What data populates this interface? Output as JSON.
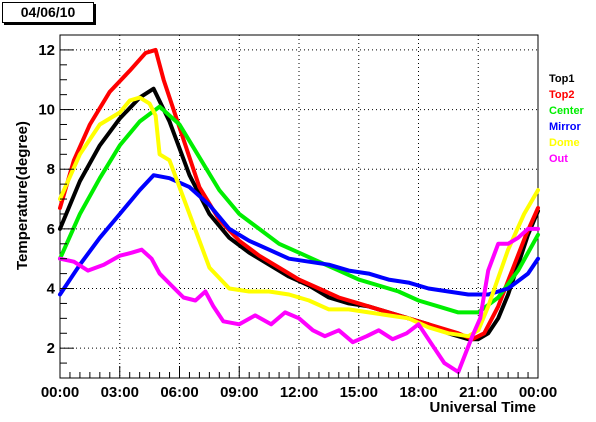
{
  "window": {
    "title": "04/06/10"
  },
  "chart_data": {
    "type": "line",
    "title": "04/06/10",
    "xlabel": "Universal Time",
    "ylabel": "Temperature(degree)",
    "x_ticks": [
      "00:00",
      "03:00",
      "06:00",
      "09:00",
      "12:00",
      "15:00",
      "18:00",
      "21:00",
      "00:00"
    ],
    "y_ticks": [
      2,
      4,
      6,
      8,
      10,
      12
    ],
    "xlim": [
      0,
      24
    ],
    "ylim": [
      1.0,
      12.5
    ],
    "grid": true,
    "legend_position": "right",
    "x_unit": "hours since 00:00 UT",
    "series": [
      {
        "name": "Top1",
        "color": "#000000",
        "x": [
          0,
          1,
          2,
          3,
          4,
          4.7,
          5.5,
          6.5,
          7.5,
          8.5,
          9.5,
          10.5,
          11.5,
          12.5,
          13.5,
          14.5,
          15.5,
          16.5,
          17.5,
          18.5,
          19.5,
          20.5,
          21,
          21.5,
          22,
          22.5,
          23,
          23.5,
          24
        ],
        "y": [
          6.0,
          7.6,
          8.8,
          9.7,
          10.4,
          10.7,
          9.6,
          7.8,
          6.5,
          5.7,
          5.2,
          4.8,
          4.4,
          4.1,
          3.7,
          3.5,
          3.4,
          3.2,
          3.0,
          2.8,
          2.5,
          2.3,
          2.3,
          2.5,
          3.0,
          3.8,
          4.8,
          5.8,
          6.6
        ]
      },
      {
        "name": "Top2",
        "color": "#ff0000",
        "x": [
          0,
          0.7,
          1.5,
          2.5,
          3.5,
          4.3,
          4.8,
          5.2,
          6.0,
          7.0,
          8.0,
          9.0,
          10.0,
          11.0,
          12.0,
          13.0,
          14.0,
          15.0,
          16.0,
          17.0,
          18.0,
          19.0,
          20.0,
          20.7,
          21.3,
          22.0,
          22.7,
          23.4,
          24
        ],
        "y": [
          6.7,
          8.3,
          9.5,
          10.6,
          11.3,
          11.9,
          12.0,
          11.0,
          9.4,
          7.4,
          6.3,
          5.6,
          5.1,
          4.7,
          4.3,
          4.0,
          3.7,
          3.5,
          3.3,
          3.1,
          2.9,
          2.7,
          2.5,
          2.3,
          2.5,
          3.4,
          4.6,
          5.8,
          6.7
        ]
      },
      {
        "name": "Center",
        "color": "#00ee00",
        "x": [
          0,
          1,
          2,
          3,
          4,
          5,
          6,
          7,
          8,
          9,
          10,
          11,
          12,
          13,
          14,
          15,
          16,
          17,
          18,
          19,
          20,
          21,
          22,
          23,
          24
        ],
        "y": [
          5.0,
          6.5,
          7.7,
          8.8,
          9.6,
          10.1,
          9.5,
          8.4,
          7.3,
          6.5,
          6.0,
          5.5,
          5.2,
          4.9,
          4.6,
          4.3,
          4.1,
          3.9,
          3.6,
          3.4,
          3.2,
          3.2,
          3.7,
          4.6,
          5.8
        ]
      },
      {
        "name": "Mirror",
        "color": "#0000ff",
        "x": [
          0,
          1,
          2,
          3,
          4,
          4.7,
          5.5,
          6.5,
          7.5,
          8.5,
          9.5,
          10.5,
          11.5,
          12.5,
          13.5,
          14.5,
          15.5,
          16.5,
          17.5,
          18.5,
          19.5,
          20.5,
          21.5,
          22.5,
          23.5,
          24
        ],
        "y": [
          3.8,
          4.8,
          5.7,
          6.5,
          7.3,
          7.8,
          7.7,
          7.4,
          6.8,
          6.0,
          5.6,
          5.3,
          5.0,
          4.9,
          4.8,
          4.6,
          4.5,
          4.3,
          4.2,
          4.0,
          3.9,
          3.8,
          3.8,
          4.0,
          4.5,
          5.0
        ]
      },
      {
        "name": "Dome",
        "color": "#ffff00",
        "x": [
          0,
          1,
          2,
          3,
          3.5,
          4,
          4.5,
          4.8,
          5.0,
          5.5,
          6.5,
          7.5,
          8.5,
          9.5,
          10.5,
          11.5,
          12.5,
          13.5,
          14.5,
          15.5,
          16.5,
          17.5,
          18.5,
          19.5,
          20.5,
          21,
          21.5,
          22.5,
          23.3,
          24
        ],
        "y": [
          7.0,
          8.5,
          9.5,
          9.9,
          10.3,
          10.4,
          10.2,
          9.8,
          8.5,
          8.3,
          6.5,
          4.7,
          4.0,
          3.9,
          3.9,
          3.8,
          3.6,
          3.3,
          3.3,
          3.2,
          3.1,
          3.0,
          2.7,
          2.5,
          2.4,
          2.6,
          3.4,
          5.3,
          6.5,
          7.3
        ]
      },
      {
        "name": "Out",
        "color": "#ff00ff",
        "x": [
          0,
          0.7,
          1.4,
          2.2,
          3.0,
          3.6,
          4.1,
          4.6,
          5.0,
          5.6,
          6.2,
          6.8,
          7.3,
          7.7,
          8.2,
          9.0,
          9.8,
          10.6,
          11.3,
          12.0,
          12.7,
          13.3,
          14.0,
          14.7,
          15.4,
          16.0,
          16.7,
          17.4,
          18.0,
          18.7,
          19.3,
          20.0,
          20.7,
          21.1,
          21.5,
          22.0,
          22.5,
          23.0,
          23.5,
          24
        ],
        "y": [
          5.0,
          4.9,
          4.6,
          4.8,
          5.1,
          5.2,
          5.3,
          5.0,
          4.5,
          4.1,
          3.7,
          3.6,
          3.9,
          3.4,
          2.9,
          2.8,
          3.1,
          2.8,
          3.2,
          3.0,
          2.6,
          2.4,
          2.6,
          2.2,
          2.4,
          2.6,
          2.3,
          2.5,
          2.8,
          2.1,
          1.5,
          1.2,
          2.4,
          3.0,
          4.6,
          5.5,
          5.5,
          5.7,
          6.0,
          6.0
        ]
      }
    ]
  }
}
